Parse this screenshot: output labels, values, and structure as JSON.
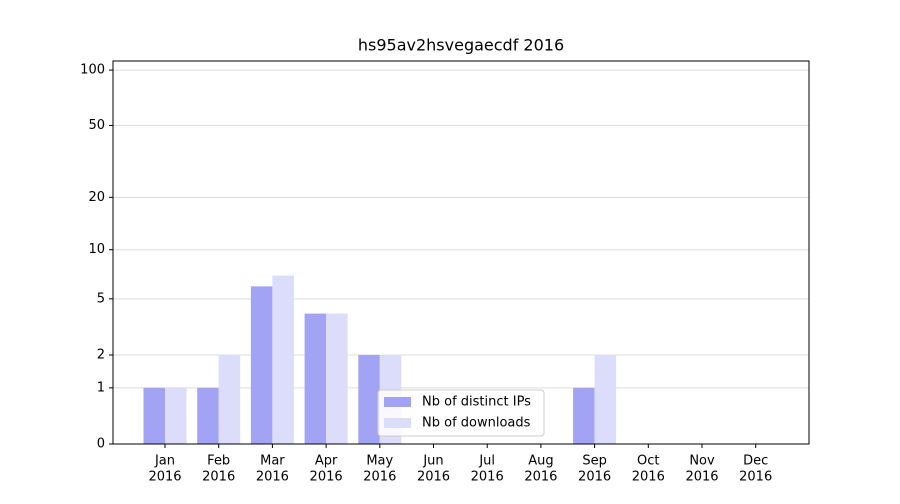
{
  "chart_data": {
    "type": "bar",
    "title": "hs95av2hsvegaecdf 2016",
    "categories": [
      [
        "Jan",
        "2016"
      ],
      [
        "Feb",
        "2016"
      ],
      [
        "Mar",
        "2016"
      ],
      [
        "Apr",
        "2016"
      ],
      [
        "May",
        "2016"
      ],
      [
        "Jun",
        "2016"
      ],
      [
        "Jul",
        "2016"
      ],
      [
        "Aug",
        "2016"
      ],
      [
        "Sep",
        "2016"
      ],
      [
        "Oct",
        "2016"
      ],
      [
        "Nov",
        "2016"
      ],
      [
        "Dec",
        "2016"
      ]
    ],
    "series": [
      {
        "name": "Nb of distinct IPs",
        "color": "#a3a3f5",
        "values": [
          1,
          1,
          6,
          4,
          2,
          0,
          0,
          0,
          1,
          0,
          0,
          0
        ]
      },
      {
        "name": "Nb of downloads",
        "color": "#dcdcfb",
        "values": [
          1,
          2,
          7,
          4,
          2,
          0,
          0,
          0,
          2,
          0,
          0,
          0
        ]
      }
    ],
    "yscale": "log1p",
    "ylim": [
      0,
      112
    ],
    "yticks": [
      0,
      1,
      2,
      5,
      10,
      20,
      50,
      100
    ],
    "grid": true,
    "legend": "lower center"
  }
}
